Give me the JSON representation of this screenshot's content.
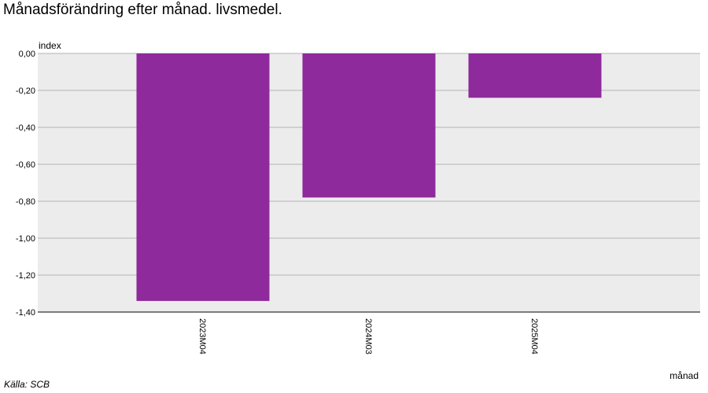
{
  "title": "Månadsförändring efter månad. livsmedel.",
  "source": "Källa: SCB",
  "chart_data": {
    "type": "bar",
    "title": "Månadsförändring efter månad. livsmedel.",
    "ylabel": "index",
    "xlabel": "månad",
    "categories": [
      "2023M04",
      "2024M03",
      "2025M04"
    ],
    "values": [
      -1.34,
      -0.78,
      -0.24
    ],
    "ylim": [
      -1.4,
      0.0
    ],
    "yticks": [
      0.0,
      -0.2,
      -0.4,
      -0.6,
      -0.8,
      -1.0,
      -1.2,
      -1.4
    ],
    "ytick_labels": [
      "0,00",
      "-0,20",
      "-0,40",
      "-0,60",
      "-0,80",
      "-1,00",
      "-1,20",
      "-1,40"
    ],
    "grid": true,
    "bar_color": "#8e2a9c",
    "plot_background": "#ececec",
    "grid_color": "#b3b3b3"
  }
}
